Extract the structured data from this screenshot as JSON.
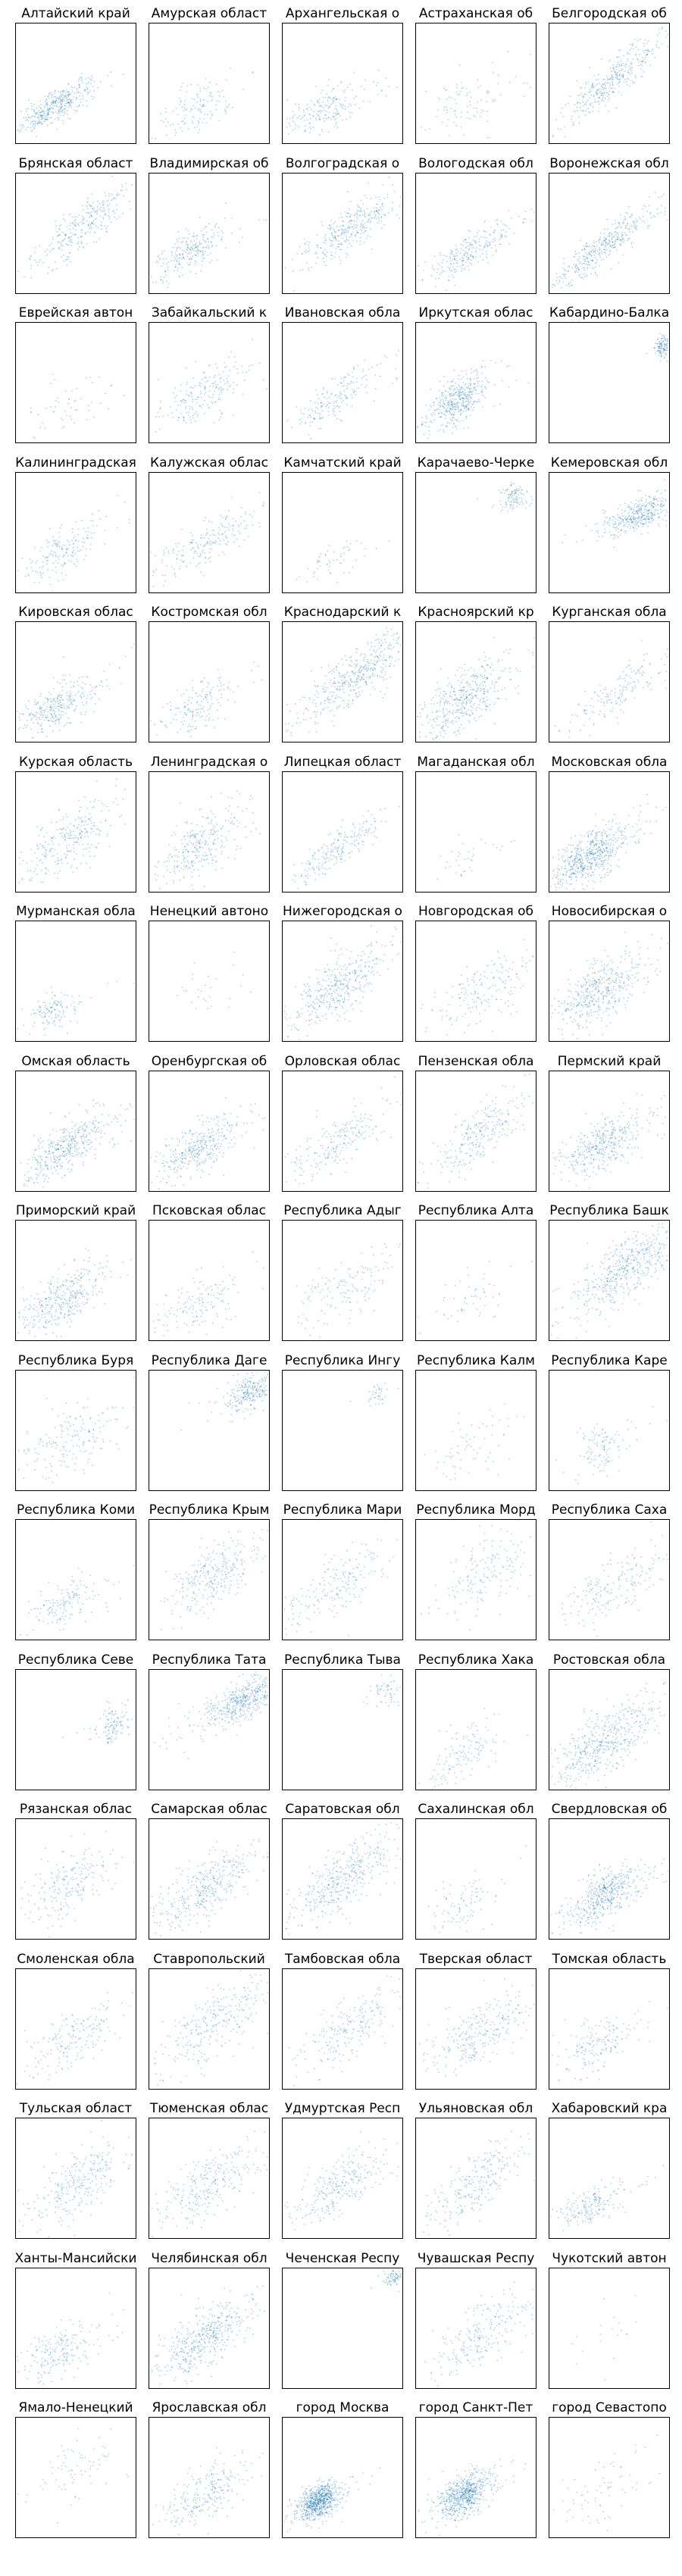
{
  "figure": {
    "point_color": "#1f77b4",
    "panel_titles": [
      "Алтайский край",
      "Амурская област",
      "Архангельская о",
      "Астраханская об",
      "Белгородская об",
      "Брянская област",
      "Владимирская об",
      "Волгоградская о",
      "Вологодская обл",
      "Воронежская обл",
      "Еврейская автон",
      "Забайкальский к",
      "Ивановская обла",
      "Иркутская облас",
      "Кабардино-Балка",
      "Калининградская",
      "Калужская облас",
      "Камчатский край",
      "Карачаево-Черке",
      "Кемеровская обл",
      "Кировская облас",
      "Костромская обл",
      "Краснодарский к",
      "Красноярский кр",
      "Курганская обла",
      "Курская область",
      "Ленинградская о",
      "Липецкая област",
      "Магаданская обл",
      "Московская обла",
      "Мурманская обла",
      "Ненецкий автоно",
      "Нижегородская о",
      "Новгородская об",
      "Новосибирская о",
      "Омская область",
      "Оренбургская об",
      "Орловская облас",
      "Пензенская обла",
      "Пермский край",
      "Приморский край",
      "Псковская облас",
      "Республика Адыг",
      "Республика Алта",
      "Республика Башк",
      "Республика Буря",
      "Республика Даге",
      "Республика Ингу",
      "Республика Калм",
      "Республика Каре",
      "Республика Коми",
      "Республика Крым",
      "Республика Мари",
      "Республика Морд",
      "Республика Саха",
      "Республика Севе",
      "Республика Тата",
      "Республика Тыва",
      "Республика Хака",
      "Ростовская обла",
      "Рязанская облас",
      "Самарская облас",
      "Саратовская обл",
      "Сахалинская обл",
      "Свердловская об",
      "Смоленская обла",
      "Ставропольский",
      "Тамбовская обла",
      "Тверская област",
      "Томская область",
      "Тульская област",
      "Тюменская облас",
      "Удмуртская Респ",
      "Ульяновская обл",
      "Хабаровский кра",
      "Ханты-Мансийски",
      "Челябинская обл",
      "Чеченская Респу",
      "Чувашская Респу",
      "Чукотский автон",
      "Ямало-Ненецкий",
      "Ярославская обл",
      "город Москва",
      "город Санкт-Пет",
      "город Севастопо"
    ]
  },
  "chart_data": {
    "type": "scatter",
    "layout": "small multiples, 17 rows × 5 columns, shared axis scale",
    "axes_ticks": "none",
    "grid": false,
    "panels": [
      {
        "title": "Алтайский край",
        "n": 420,
        "cx": 0.32,
        "cy": 0.3,
        "sx": 0.14,
        "sy": 0.08,
        "r": 0.55,
        "tail": 0.2
      },
      {
        "title": "Амурская област",
        "n": 150,
        "cx": 0.4,
        "cy": 0.3,
        "sx": 0.16,
        "sy": 0.12,
        "r": 0.45,
        "tail": 0.25
      },
      {
        "title": "Архангельская о",
        "n": 220,
        "cx": 0.35,
        "cy": 0.28,
        "sx": 0.14,
        "sy": 0.1,
        "r": 0.4,
        "tail": 0.25
      },
      {
        "title": "Астраханская об",
        "n": 110,
        "cx": 0.45,
        "cy": 0.35,
        "sx": 0.2,
        "sy": 0.14,
        "r": 0.45,
        "tail": 0.25
      },
      {
        "title": "Белгородская об",
        "n": 380,
        "cx": 0.55,
        "cy": 0.55,
        "sx": 0.18,
        "sy": 0.16,
        "r": 0.85,
        "tail": 0.25
      },
      {
        "title": "Брянская област",
        "n": 320,
        "cx": 0.55,
        "cy": 0.55,
        "sx": 0.18,
        "sy": 0.16,
        "r": 0.8,
        "tail": 0.25
      },
      {
        "title": "Владимирская об",
        "n": 260,
        "cx": 0.35,
        "cy": 0.35,
        "sx": 0.12,
        "sy": 0.1,
        "r": 0.55,
        "tail": 0.25
      },
      {
        "title": "Волгоградская о",
        "n": 360,
        "cx": 0.58,
        "cy": 0.55,
        "sx": 0.18,
        "sy": 0.14,
        "r": 0.65,
        "tail": 0.25
      },
      {
        "title": "Вологодская обл",
        "n": 260,
        "cx": 0.45,
        "cy": 0.35,
        "sx": 0.16,
        "sy": 0.1,
        "r": 0.6,
        "tail": 0.25
      },
      {
        "title": "Воронежская обл",
        "n": 420,
        "cx": 0.4,
        "cy": 0.35,
        "sx": 0.18,
        "sy": 0.12,
        "r": 0.8,
        "tail": 0.3
      },
      {
        "title": "Еврейская автон",
        "n": 60,
        "cx": 0.4,
        "cy": 0.3,
        "sx": 0.15,
        "sy": 0.12,
        "r": 0.4,
        "tail": 0.25
      },
      {
        "title": "Забайкальский к",
        "n": 220,
        "cx": 0.45,
        "cy": 0.4,
        "sx": 0.16,
        "sy": 0.14,
        "r": 0.55,
        "tail": 0.25
      },
      {
        "title": "Ивановская обла",
        "n": 200,
        "cx": 0.4,
        "cy": 0.35,
        "sx": 0.16,
        "sy": 0.12,
        "r": 0.65,
        "tail": 0.25
      },
      {
        "title": "Иркутская облас",
        "n": 460,
        "cx": 0.35,
        "cy": 0.35,
        "sx": 0.13,
        "sy": 0.12,
        "r": 0.5,
        "tail": 0.2
      },
      {
        "title": "Кабардино-Балка",
        "n": 120,
        "cx": 0.95,
        "cy": 0.8,
        "sx": 0.03,
        "sy": 0.05,
        "r": 0.2,
        "tail": 0.05
      },
      {
        "title": "Калининградская",
        "n": 200,
        "cx": 0.4,
        "cy": 0.35,
        "sx": 0.15,
        "sy": 0.12,
        "r": 0.55,
        "tail": 0.25
      },
      {
        "title": "Калужская облас",
        "n": 230,
        "cx": 0.45,
        "cy": 0.4,
        "sx": 0.2,
        "sy": 0.12,
        "r": 0.6,
        "tail": 0.25
      },
      {
        "title": "Камчатский край",
        "n": 60,
        "cx": 0.4,
        "cy": 0.25,
        "sx": 0.12,
        "sy": 0.08,
        "r": 0.3,
        "tail": 0.2
      },
      {
        "title": "Карачаево-Черке",
        "n": 110,
        "cx": 0.82,
        "cy": 0.8,
        "sx": 0.05,
        "sy": 0.06,
        "r": 0.2,
        "tail": 0.2
      },
      {
        "title": "Кемеровская обл",
        "n": 420,
        "cx": 0.75,
        "cy": 0.65,
        "sx": 0.14,
        "sy": 0.08,
        "r": 0.4,
        "tail": 0.2
      },
      {
        "title": "Кировская облас",
        "n": 340,
        "cx": 0.35,
        "cy": 0.3,
        "sx": 0.14,
        "sy": 0.12,
        "r": 0.55,
        "tail": 0.25
      },
      {
        "title": "Костромская обл",
        "n": 180,
        "cx": 0.4,
        "cy": 0.3,
        "sx": 0.14,
        "sy": 0.12,
        "r": 0.5,
        "tail": 0.25
      },
      {
        "title": "Краснодарский к",
        "n": 520,
        "cx": 0.62,
        "cy": 0.55,
        "sx": 0.22,
        "sy": 0.18,
        "r": 0.75,
        "tail": 0.25
      },
      {
        "title": "Красноярский кр",
        "n": 480,
        "cx": 0.4,
        "cy": 0.35,
        "sx": 0.18,
        "sy": 0.16,
        "r": 0.6,
        "tail": 0.25
      },
      {
        "title": "Курганская обла",
        "n": 200,
        "cx": 0.55,
        "cy": 0.4,
        "sx": 0.2,
        "sy": 0.12,
        "r": 0.65,
        "tail": 0.25
      },
      {
        "title": "Курская область",
        "n": 300,
        "cx": 0.45,
        "cy": 0.45,
        "sx": 0.18,
        "sy": 0.16,
        "r": 0.65,
        "tail": 0.25
      },
      {
        "title": "Ленинградская о",
        "n": 320,
        "cx": 0.4,
        "cy": 0.38,
        "sx": 0.16,
        "sy": 0.16,
        "r": 0.6,
        "tail": 0.25
      },
      {
        "title": "Липецкая област",
        "n": 240,
        "cx": 0.45,
        "cy": 0.35,
        "sx": 0.18,
        "sy": 0.12,
        "r": 0.75,
        "tail": 0.25
      },
      {
        "title": "Магаданская обл",
        "n": 40,
        "cx": 0.4,
        "cy": 0.25,
        "sx": 0.15,
        "sy": 0.1,
        "r": 0.4,
        "tail": 0.2
      },
      {
        "title": "Московская обла",
        "n": 640,
        "cx": 0.35,
        "cy": 0.3,
        "sx": 0.14,
        "sy": 0.12,
        "r": 0.6,
        "tail": 0.25
      },
      {
        "title": "Мурманская обла",
        "n": 140,
        "cx": 0.3,
        "cy": 0.25,
        "sx": 0.1,
        "sy": 0.08,
        "r": 0.4,
        "tail": 0.25
      },
      {
        "title": "Ненецкий автоно",
        "n": 30,
        "cx": 0.45,
        "cy": 0.4,
        "sx": 0.15,
        "sy": 0.12,
        "r": 0.3,
        "tail": 0.2
      },
      {
        "title": "Нижегородская о",
        "n": 460,
        "cx": 0.45,
        "cy": 0.45,
        "sx": 0.2,
        "sy": 0.18,
        "r": 0.7,
        "tail": 0.25
      },
      {
        "title": "Новгородская об",
        "n": 200,
        "cx": 0.55,
        "cy": 0.4,
        "sx": 0.18,
        "sy": 0.15,
        "r": 0.55,
        "tail": 0.25
      },
      {
        "title": "Новосибирская о",
        "n": 480,
        "cx": 0.4,
        "cy": 0.4,
        "sx": 0.16,
        "sy": 0.15,
        "r": 0.6,
        "tail": 0.25
      },
      {
        "title": "Омская область",
        "n": 460,
        "cx": 0.4,
        "cy": 0.35,
        "sx": 0.16,
        "sy": 0.13,
        "r": 0.6,
        "tail": 0.25
      },
      {
        "title": "Оренбургская об",
        "n": 400,
        "cx": 0.4,
        "cy": 0.35,
        "sx": 0.16,
        "sy": 0.13,
        "r": 0.6,
        "tail": 0.25
      },
      {
        "title": "Орловская облас",
        "n": 240,
        "cx": 0.45,
        "cy": 0.4,
        "sx": 0.2,
        "sy": 0.15,
        "r": 0.65,
        "tail": 0.25
      },
      {
        "title": "Пензенская обла",
        "n": 300,
        "cx": 0.55,
        "cy": 0.5,
        "sx": 0.18,
        "sy": 0.18,
        "r": 0.8,
        "tail": 0.25
      },
      {
        "title": "Пермский край",
        "n": 420,
        "cx": 0.45,
        "cy": 0.4,
        "sx": 0.14,
        "sy": 0.13,
        "r": 0.55,
        "tail": 0.25
      },
      {
        "title": "Приморский край",
        "n": 400,
        "cx": 0.4,
        "cy": 0.35,
        "sx": 0.16,
        "sy": 0.15,
        "r": 0.6,
        "tail": 0.25
      },
      {
        "title": "Псковская облас",
        "n": 160,
        "cx": 0.4,
        "cy": 0.3,
        "sx": 0.16,
        "sy": 0.14,
        "r": 0.5,
        "tail": 0.25
      },
      {
        "title": "Республика Адыг",
        "n": 160,
        "cx": 0.55,
        "cy": 0.45,
        "sx": 0.2,
        "sy": 0.16,
        "r": 0.55,
        "tail": 0.25
      },
      {
        "title": "Республика Алта",
        "n": 60,
        "cx": 0.45,
        "cy": 0.35,
        "sx": 0.15,
        "sy": 0.12,
        "r": 0.4,
        "tail": 0.25
      },
      {
        "title": "Республика Башк",
        "n": 560,
        "cx": 0.65,
        "cy": 0.6,
        "sx": 0.22,
        "sy": 0.2,
        "r": 0.75,
        "tail": 0.25
      },
      {
        "title": "Республика Буря",
        "n": 200,
        "cx": 0.45,
        "cy": 0.45,
        "sx": 0.18,
        "sy": 0.18,
        "r": 0.55,
        "tail": 0.25
      },
      {
        "title": "Республика Даге",
        "n": 300,
        "cx": 0.85,
        "cy": 0.82,
        "sx": 0.1,
        "sy": 0.08,
        "r": 0.4,
        "tail": 0.2
      },
      {
        "title": "Республика Ингу",
        "n": 40,
        "cx": 0.78,
        "cy": 0.8,
        "sx": 0.05,
        "sy": 0.05,
        "r": 0.2,
        "tail": 0.15
      },
      {
        "title": "Республика Калм",
        "n": 80,
        "cx": 0.45,
        "cy": 0.35,
        "sx": 0.18,
        "sy": 0.16,
        "r": 0.5,
        "tail": 0.25
      },
      {
        "title": "Республика Каре",
        "n": 120,
        "cx": 0.45,
        "cy": 0.35,
        "sx": 0.1,
        "sy": 0.1,
        "r": 0.4,
        "tail": 0.2
      },
      {
        "title": "Республика Коми",
        "n": 160,
        "cx": 0.4,
        "cy": 0.3,
        "sx": 0.15,
        "sy": 0.1,
        "r": 0.45,
        "tail": 0.25
      },
      {
        "title": "Республика Крым",
        "n": 320,
        "cx": 0.55,
        "cy": 0.55,
        "sx": 0.18,
        "sy": 0.16,
        "r": 0.65,
        "tail": 0.25
      },
      {
        "title": "Республика Мари",
        "n": 200,
        "cx": 0.45,
        "cy": 0.45,
        "sx": 0.18,
        "sy": 0.18,
        "r": 0.7,
        "tail": 0.25
      },
      {
        "title": "Республика Морд",
        "n": 180,
        "cx": 0.6,
        "cy": 0.55,
        "sx": 0.18,
        "sy": 0.18,
        "r": 0.65,
        "tail": 0.25
      },
      {
        "title": "Республика Саха",
        "n": 200,
        "cx": 0.55,
        "cy": 0.45,
        "sx": 0.2,
        "sy": 0.16,
        "r": 0.6,
        "tail": 0.25
      },
      {
        "title": "Республика Севе",
        "n": 120,
        "cx": 0.82,
        "cy": 0.55,
        "sx": 0.06,
        "sy": 0.08,
        "r": 0.3,
        "tail": 0.25
      },
      {
        "title": "Республика Тата",
        "n": 520,
        "cx": 0.8,
        "cy": 0.75,
        "sx": 0.14,
        "sy": 0.1,
        "r": 0.5,
        "tail": 0.25
      },
      {
        "title": "Республика Тыва",
        "n": 60,
        "cx": 0.85,
        "cy": 0.8,
        "sx": 0.08,
        "sy": 0.06,
        "r": 0.2,
        "tail": 0.2
      },
      {
        "title": "Республика Хака",
        "n": 140,
        "cx": 0.4,
        "cy": 0.3,
        "sx": 0.14,
        "sy": 0.12,
        "r": 0.5,
        "tail": 0.25
      },
      {
        "title": "Ростовская обла",
        "n": 560,
        "cx": 0.45,
        "cy": 0.4,
        "sx": 0.22,
        "sy": 0.18,
        "r": 0.7,
        "tail": 0.25
      },
      {
        "title": "Рязанская облас",
        "n": 240,
        "cx": 0.45,
        "cy": 0.45,
        "sx": 0.18,
        "sy": 0.18,
        "r": 0.65,
        "tail": 0.25
      },
      {
        "title": "Самарская облас",
        "n": 420,
        "cx": 0.45,
        "cy": 0.4,
        "sx": 0.2,
        "sy": 0.16,
        "r": 0.65,
        "tail": 0.25
      },
      {
        "title": "Саратовская обл",
        "n": 460,
        "cx": 0.5,
        "cy": 0.5,
        "sx": 0.2,
        "sy": 0.18,
        "r": 0.75,
        "tail": 0.25
      },
      {
        "title": "Сахалинская обл",
        "n": 100,
        "cx": 0.4,
        "cy": 0.3,
        "sx": 0.15,
        "sy": 0.14,
        "r": 0.45,
        "tail": 0.25
      },
      {
        "title": "Свердловская об",
        "n": 520,
        "cx": 0.45,
        "cy": 0.35,
        "sx": 0.14,
        "sy": 0.12,
        "r": 0.55,
        "tail": 0.25
      },
      {
        "title": "Смоленская обла",
        "n": 200,
        "cx": 0.45,
        "cy": 0.4,
        "sx": 0.18,
        "sy": 0.16,
        "r": 0.65,
        "tail": 0.25
      },
      {
        "title": "Ставропольский",
        "n": 320,
        "cx": 0.55,
        "cy": 0.55,
        "sx": 0.22,
        "sy": 0.2,
        "r": 0.7,
        "tail": 0.25
      },
      {
        "title": "Тамбовская обла",
        "n": 240,
        "cx": 0.55,
        "cy": 0.5,
        "sx": 0.2,
        "sy": 0.18,
        "r": 0.7,
        "tail": 0.25
      },
      {
        "title": "Тверская област",
        "n": 300,
        "cx": 0.5,
        "cy": 0.45,
        "sx": 0.18,
        "sy": 0.16,
        "r": 0.6,
        "tail": 0.25
      },
      {
        "title": "Томская область",
        "n": 180,
        "cx": 0.4,
        "cy": 0.35,
        "sx": 0.14,
        "sy": 0.14,
        "r": 0.5,
        "tail": 0.25
      },
      {
        "title": "Тульская област",
        "n": 300,
        "cx": 0.5,
        "cy": 0.45,
        "sx": 0.2,
        "sy": 0.18,
        "r": 0.65,
        "tail": 0.25
      },
      {
        "title": "Тюменская облас",
        "n": 300,
        "cx": 0.5,
        "cy": 0.45,
        "sx": 0.2,
        "sy": 0.18,
        "r": 0.7,
        "tail": 0.25
      },
      {
        "title": "Удмуртская Респ",
        "n": 300,
        "cx": 0.45,
        "cy": 0.4,
        "sx": 0.18,
        "sy": 0.15,
        "r": 0.65,
        "tail": 0.25
      },
      {
        "title": "Ульяновская обл",
        "n": 280,
        "cx": 0.5,
        "cy": 0.45,
        "sx": 0.18,
        "sy": 0.18,
        "r": 0.7,
        "tail": 0.25
      },
      {
        "title": "Хабаровский кра",
        "n": 200,
        "cx": 0.35,
        "cy": 0.28,
        "sx": 0.12,
        "sy": 0.08,
        "r": 0.4,
        "tail": 0.25
      },
      {
        "title": "Ханты-Мансийски",
        "n": 220,
        "cx": 0.35,
        "cy": 0.3,
        "sx": 0.14,
        "sy": 0.12,
        "r": 0.5,
        "tail": 0.25
      },
      {
        "title": "Челябинская обл",
        "n": 520,
        "cx": 0.45,
        "cy": 0.4,
        "sx": 0.18,
        "sy": 0.16,
        "r": 0.65,
        "tail": 0.25
      },
      {
        "title": "Чеченская Респу",
        "n": 80,
        "cx": 0.93,
        "cy": 0.92,
        "sx": 0.04,
        "sy": 0.04,
        "r": 0.2,
        "tail": 0.2
      },
      {
        "title": "Чувашская Респу",
        "n": 260,
        "cx": 0.55,
        "cy": 0.45,
        "sx": 0.2,
        "sy": 0.18,
        "r": 0.7,
        "tail": 0.25
      },
      {
        "title": "Чукотский автон",
        "n": 20,
        "cx": 0.5,
        "cy": 0.45,
        "sx": 0.15,
        "sy": 0.15,
        "r": 0.3,
        "tail": 0.2
      },
      {
        "title": "Ямало-Ненецкий",
        "n": 80,
        "cx": 0.5,
        "cy": 0.55,
        "sx": 0.15,
        "sy": 0.14,
        "r": 0.4,
        "tail": 0.25
      },
      {
        "title": "Ярославская обл",
        "n": 260,
        "cx": 0.45,
        "cy": 0.35,
        "sx": 0.16,
        "sy": 0.14,
        "r": 0.6,
        "tail": 0.25
      },
      {
        "title": "город Москва",
        "n": 760,
        "cx": 0.3,
        "cy": 0.3,
        "sx": 0.08,
        "sy": 0.08,
        "r": 0.45,
        "tail": 0.2
      },
      {
        "title": "город Санкт-Пет",
        "n": 680,
        "cx": 0.4,
        "cy": 0.35,
        "sx": 0.1,
        "sy": 0.1,
        "r": 0.5,
        "tail": 0.2
      },
      {
        "title": "город Севастопо",
        "n": 80,
        "cx": 0.45,
        "cy": 0.4,
        "sx": 0.16,
        "sy": 0.14,
        "r": 0.4,
        "tail": 0.25
      }
    ]
  }
}
